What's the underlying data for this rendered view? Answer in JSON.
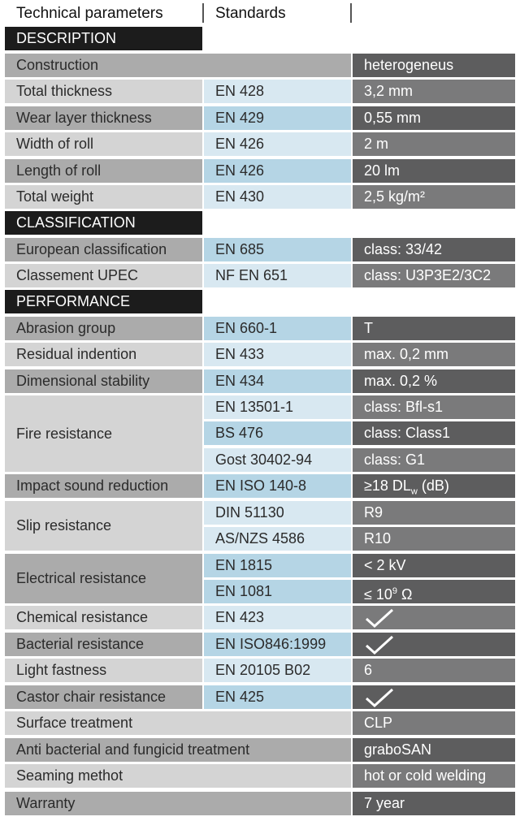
{
  "header": {
    "col1": "Technical parameters",
    "col2": "Standards"
  },
  "sections": {
    "description": "DESCRIPTION",
    "classification": "CLASSIFICATION",
    "performance": "PERFORMANCE"
  },
  "rows": {
    "construction": {
      "label": "Construction",
      "value": "heterogeneus"
    },
    "total_thickness": {
      "label": "Total thickness",
      "standard": "EN 428",
      "value": "3,2 mm"
    },
    "wear_layer": {
      "label": "Wear layer thickness",
      "standard": "EN 429",
      "value": "0,55 mm"
    },
    "width": {
      "label": "Width of roll",
      "standard": "EN 426",
      "value": "2 m"
    },
    "length": {
      "label": "Length of roll",
      "standard": "EN 426",
      "value": "20 lm"
    },
    "weight": {
      "label": "Total weight",
      "standard": "EN 430",
      "value": "2,5 kg/m²"
    },
    "european": {
      "label": "European classification",
      "standard": "EN 685",
      "value": "class: 33/42"
    },
    "upec": {
      "label": "Classement UPEC",
      "standard": "NF EN 651",
      "value": "class: U3P3E2/3C2"
    },
    "abrasion": {
      "label": "Abrasion group",
      "standard": "EN 660-1",
      "value": "T"
    },
    "indention": {
      "label": "Residual indention",
      "standard": "EN 433",
      "value": "max. 0,2 mm"
    },
    "dimensional": {
      "label": "Dimensional stability",
      "standard": "EN 434",
      "value": "max. 0,2 %"
    },
    "fire": {
      "label": "Fire resistance",
      "standards": [
        "EN 13501-1",
        "BS 476",
        "Gost 30402-94"
      ],
      "values": [
        "class: Bfl-s1",
        "class: Class1",
        "class: G1"
      ]
    },
    "impact": {
      "label": "Impact sound reduction",
      "standard": "EN ISO 140-8",
      "value_pre": "≥18 DL",
      "value_sub": "w",
      "value_post": " (dB)"
    },
    "slip": {
      "label": "Slip resistance",
      "standards": [
        "DIN 51130",
        "AS/NZS 4586"
      ],
      "values": [
        "R9",
        "R10"
      ]
    },
    "electrical": {
      "label": "Electrical resistance",
      "standards": [
        "EN 1815",
        "EN 1081"
      ],
      "value1": "< 2 kV",
      "value2_pre": "≤ 10",
      "value2_sup": "9",
      "value2_post": " Ω"
    },
    "chemical": {
      "label": "Chemical resistance",
      "standard": "EN 423"
    },
    "bacterial": {
      "label": "Bacterial resistance",
      "standard": "EN ISO846:1999"
    },
    "light": {
      "label": "Light fastness",
      "standard": "EN 20105 B02",
      "value": "6"
    },
    "castor": {
      "label": "Castor chair resistance",
      "standard": "EN 425"
    },
    "surface": {
      "label": "Surface treatment",
      "value": "CLP"
    },
    "antibacterial": {
      "label": "Anti bacterial and fungicid treatment",
      "value": "graboSAN"
    },
    "seaming": {
      "label": "Seaming methot",
      "value": "hot or cold welding"
    },
    "warranty": {
      "label": "Warranty",
      "value": "7 year"
    }
  },
  "icons": {
    "check": "checkmark-icon"
  },
  "colors": {
    "section_bg": "#1c1c1c",
    "value_dark": "#5d5d5e",
    "standard_blue": "#b5d5e5"
  }
}
